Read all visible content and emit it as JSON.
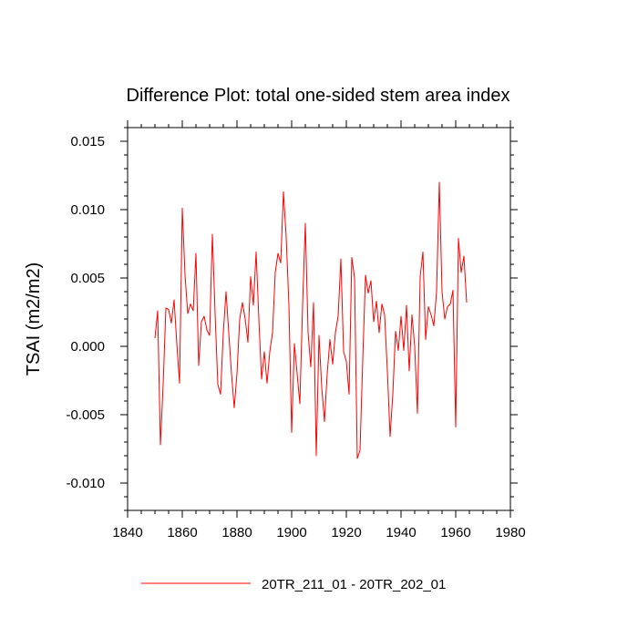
{
  "chart_data": {
    "type": "line",
    "title": "Difference Plot: total one-sided stem area index",
    "xlabel": "",
    "ylabel": "TSAI  (m2/m2)",
    "xlim": [
      1840,
      1980
    ],
    "ylim": [
      -0.012,
      0.016
    ],
    "x_ticks": [
      1840,
      1860,
      1880,
      1900,
      1920,
      1940,
      1960,
      1980
    ],
    "x_tick_labels": [
      "1840",
      "1860",
      "1880",
      "1900",
      "1920",
      "1940",
      "1960",
      "1980"
    ],
    "y_ticks": [
      -0.01,
      -0.005,
      0.0,
      0.005,
      0.01,
      0.015
    ],
    "y_tick_labels": [
      "-0.010",
      "-0.005",
      "0.000",
      "0.005",
      "0.010",
      "0.015"
    ],
    "grid": false,
    "legend_position": "bottom",
    "series": [
      {
        "name": "20TR_211_01 - 20TR_202_01",
        "color": "#ff0000",
        "x_start": 1850,
        "x_step": 1,
        "values": [
          0.0006,
          0.0026,
          -0.0072,
          -0.0028,
          0.0028,
          0.0027,
          0.0017,
          0.0034,
          0.0002,
          -0.0027,
          0.0101,
          0.0052,
          0.0024,
          0.0031,
          0.0026,
          0.0068,
          -0.0014,
          0.0018,
          0.0022,
          0.0012,
          0.0008,
          0.0082,
          0.0024,
          -0.0028,
          -0.0035,
          0.001,
          0.004,
          0.001,
          -0.002,
          -0.0045,
          -0.002,
          0.002,
          0.0032,
          0.002,
          0.0003,
          0.0051,
          0.003,
          0.0069,
          0.002,
          -0.0024,
          -0.0004,
          -0.0027,
          -0.0004,
          0.001,
          0.0054,
          0.0068,
          0.0061,
          0.0113,
          0.008,
          0.003,
          -0.0063,
          0.0002,
          -0.002,
          -0.0042,
          0.003,
          0.009,
          0.001,
          -0.0015,
          0.0032,
          -0.008,
          0.0008,
          -0.003,
          -0.0055,
          -0.002,
          0.0005,
          -0.0013,
          0.001,
          0.0022,
          0.0064,
          -0.0004,
          -0.0011,
          -0.0035,
          0.0065,
          0.005,
          -0.0082,
          -0.0076,
          -0.001,
          0.0052,
          0.0039,
          0.0048,
          0.0018,
          0.0033,
          0.001,
          0.0031,
          0.0023,
          -0.0018,
          -0.0066,
          -0.0035,
          0.0011,
          -0.0003,
          0.0022,
          -0.0003,
          0.003,
          -0.0018,
          0.0023,
          0.0,
          -0.0049,
          0.0051,
          0.0069,
          0.0005,
          0.0029,
          0.0023,
          0.0015,
          0.004,
          0.012,
          0.004,
          0.002,
          0.0029,
          0.0031,
          0.0041,
          -0.0059,
          0.0079,
          0.0054,
          0.0066,
          0.0032
        ]
      }
    ]
  }
}
